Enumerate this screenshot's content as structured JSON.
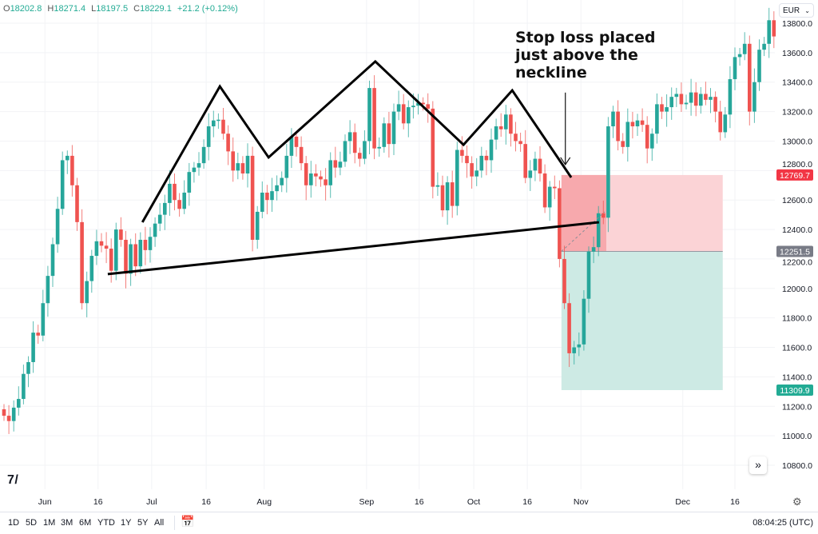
{
  "header": {
    "ohlc": [
      {
        "key": "O",
        "value": "18202.8"
      },
      {
        "key": "H",
        "value": "18271.4"
      },
      {
        "key": "L",
        "value": "18197.5"
      },
      {
        "key": "C",
        "value": "18229.1"
      }
    ],
    "change": "+21.2 (+0.12%)",
    "currency": "EUR"
  },
  "annotation": {
    "lines": [
      "Stop loss placed",
      "just above the",
      "neckline"
    ]
  },
  "toolbar": {
    "ranges": [
      "1D",
      "5D",
      "1M",
      "3M",
      "6M",
      "YTD",
      "1Y",
      "5Y",
      "All"
    ],
    "clock": "08:04:25 (UTC)",
    "calendar_icon": "calendar-goto-icon",
    "scroll_icon": "double-chevron-right-icon",
    "settings_icon": "gear-icon",
    "logo": "TV"
  },
  "colors": {
    "up": "#26a69a",
    "down": "#ef5350",
    "stop_zone": "#f7a9ad",
    "target_zone": "#cdeae4",
    "stop_label": "#f23645",
    "entry_label": "#787b86",
    "target_label": "#22ab94",
    "drawing": "#000000"
  },
  "chart_data": {
    "type": "candlestick",
    "title": "",
    "ylim": [
      10700,
      13900
    ],
    "grid": true,
    "y_ticks": [
      "13800.0",
      "13600.0",
      "13400.0",
      "13200.0",
      "13000.0",
      "12800.0",
      "12600.0",
      "12400.0",
      "12200.0",
      "12000.0",
      "11800.0",
      "11600.0",
      "11400.0",
      "11200.0",
      "11000.0",
      "10800.0"
    ],
    "x_ticks": [
      {
        "label": "Jun",
        "index": 8.4
      },
      {
        "label": "16",
        "index": 19.3
      },
      {
        "label": "Jul",
        "index": 30.3
      },
      {
        "label": "16",
        "index": 41.5
      },
      {
        "label": "Aug",
        "index": 53.4
      },
      {
        "label": "Sep",
        "index": 74.4
      },
      {
        "label": "16",
        "index": 85.2
      },
      {
        "label": "Oct",
        "index": 96.4
      },
      {
        "label": "16",
        "index": 107.4
      },
      {
        "label": "Nov",
        "index": 118.4
      },
      {
        "label": "Dec",
        "index": 139.3
      },
      {
        "label": "16",
        "index": 150
      }
    ],
    "first_open": 11180,
    "close": [
      11136,
      11100,
      11191,
      11250,
      11420,
      11500,
      11700,
      11680,
      11900,
      12085,
      12300,
      12540,
      12870,
      12900,
      12700,
      12450,
      11900,
      12050,
      12221,
      12320,
      12290,
      12270,
      12120,
      12400,
      12330,
      12100,
      12300,
      12150,
      12330,
      12260,
      12350,
      12440,
      12500,
      12580,
      12710,
      12600,
      12540,
      12650,
      12790,
      12820,
      12850,
      12960,
      13100,
      13140,
      13145,
      13050,
      12930,
      12800,
      12850,
      12780,
      12900,
      12330,
      12520,
      12650,
      12600,
      12660,
      12700,
      12750,
      12900,
      13030,
      12960,
      12850,
      12700,
      12780,
      12760,
      12740,
      12700,
      12870,
      12820,
      12860,
      13000,
      13060,
      12920,
      12880,
      13000,
      13360,
      12950,
      12960,
      13120,
      12980,
      13200,
      13250,
      13120,
      13230,
      13240,
      13260,
      13250,
      13220,
      12690,
      12700,
      12530,
      12720,
      12560,
      12940,
      12900,
      12850,
      12760,
      12800,
      12900,
      12870,
      13010,
      13100,
      13080,
      13180,
      13050,
      13000,
      12980,
      12750,
      12800,
      12880,
      12780,
      12550,
      12690,
      12680,
      12200,
      11900,
      11560,
      11600,
      11620,
      11930,
      12250,
      12280,
      12510,
      12480,
      13100,
      13200,
      13000,
      12960,
      13130,
      13100,
      13140,
      13110,
      12950,
      13050,
      13250,
      13200,
      13230,
      13300,
      13320,
      13250,
      13260,
      13330,
      13240,
      13320,
      13280,
      13300,
      13200,
      13060,
      13180,
      13420,
      13570,
      13590,
      13660,
      13200,
      13400,
      13620,
      13660,
      13820,
      13710
    ],
    "drawings": {
      "head_and_shoulders": [
        [
          28.4,
          12449
        ],
        [
          44.3,
          13371
        ],
        [
          54.3,
          12889
        ],
        [
          76.2,
          13540
        ],
        [
          94.3,
          12975
        ],
        [
          104.3,
          13344
        ],
        [
          116.4,
          12753
        ]
      ],
      "neckline": [
        [
          21.3,
          12097
        ],
        [
          122.1,
          12449
        ]
      ],
      "arrow": {
        "index": 115.2,
        "from": 13329,
        "to": 12840
      }
    },
    "short_position": {
      "entry": 12251.5,
      "stop": 12769.7,
      "target": 11309.9,
      "entry_label": "12251.5",
      "stop_label": "12769.7",
      "target_label": "11309.9",
      "start_index": 114.4,
      "active_end_index": 123.6,
      "end_index": 147.5
    }
  }
}
